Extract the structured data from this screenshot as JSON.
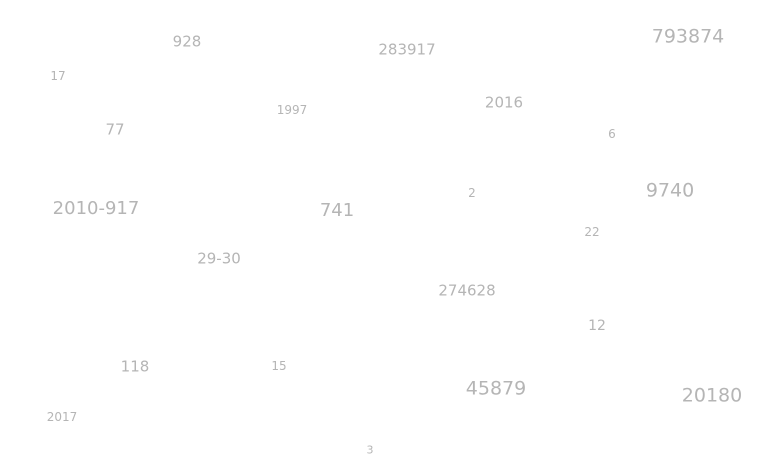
{
  "text_color": "#b5b5b5",
  "background_color": "#ffffff",
  "numbers": [
    "928",
    "283917",
    "793874",
    "17",
    "1997",
    "2016",
    "77",
    "6",
    "2",
    "9740",
    "2010-917",
    "741",
    "22",
    "29-30",
    "274628",
    "12",
    "118",
    "15",
    "45879",
    "20180",
    "2017",
    "3"
  ]
}
